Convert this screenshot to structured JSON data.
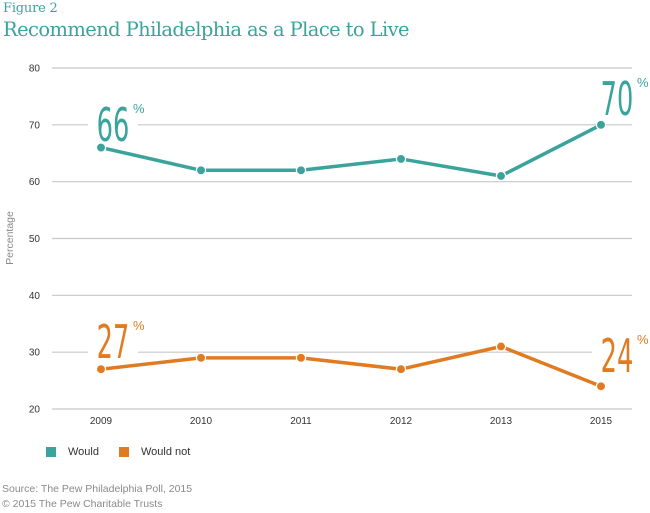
{
  "figure_label": "Figure 2",
  "title": "Recommend Philadelphia as a Place to Live",
  "colors": {
    "would": "#3aa39c",
    "would_not": "#e07b22",
    "grid": "#c8c8c8"
  },
  "chart_data": {
    "type": "line",
    "title": "Recommend Philadelphia as a Place to Live",
    "xlabel": "",
    "ylabel": "Percentage",
    "categories": [
      "2009",
      "2010",
      "2011",
      "2012",
      "2013",
      "2015"
    ],
    "ylim": [
      20,
      80
    ],
    "yticks": [
      20,
      30,
      40,
      50,
      60,
      70,
      80
    ],
    "ytick_labels": [
      "20",
      "30",
      "40",
      "50",
      "60",
      "70",
      "80"
    ],
    "grid": true,
    "legend_position": "bottom-left",
    "series": [
      {
        "name": "Would",
        "key": "would",
        "values": [
          66,
          62,
          62,
          64,
          61,
          70
        ]
      },
      {
        "name": "Would not",
        "key": "would_not",
        "values": [
          27,
          29,
          29,
          27,
          31,
          24
        ]
      }
    ],
    "annotations": [
      {
        "series": "Would",
        "category": "2009",
        "number": "66",
        "suffix": "%"
      },
      {
        "series": "Would",
        "category": "2015",
        "number": "70",
        "suffix": "%"
      },
      {
        "series": "Would not",
        "category": "2009",
        "number": "27",
        "suffix": "%"
      },
      {
        "series": "Would not",
        "category": "2015",
        "number": "24",
        "suffix": "%"
      }
    ]
  },
  "legend": [
    {
      "label": "Would",
      "color": "#3aa39c"
    },
    {
      "label": "Would not",
      "color": "#e07b22"
    }
  ],
  "footer": {
    "source": "Source: The Pew Philadelphia Poll, 2015",
    "copyright": "© 2015 The Pew Charitable Trusts"
  }
}
